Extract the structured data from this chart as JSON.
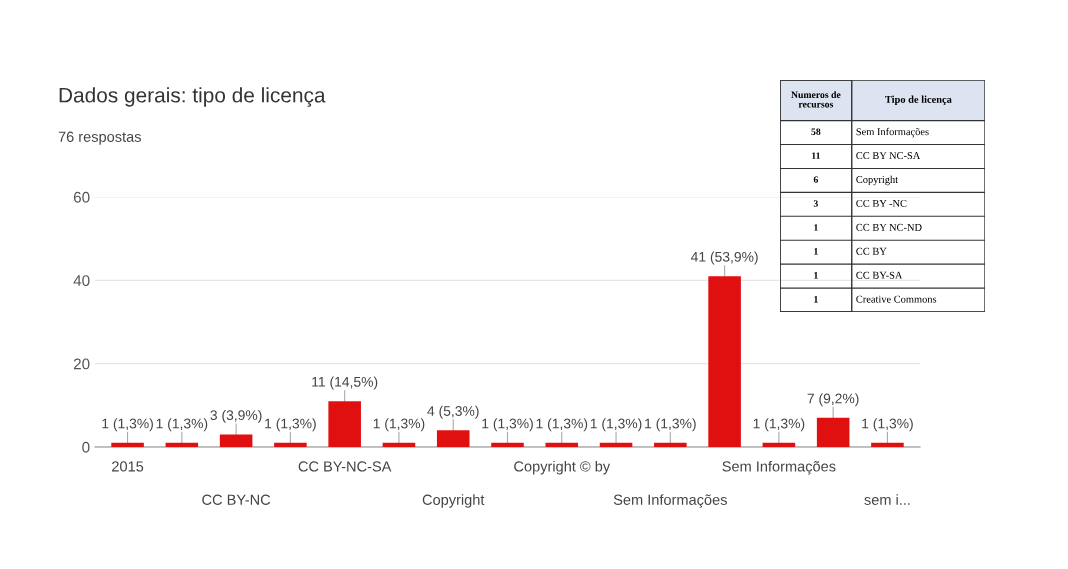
{
  "chart_data": [
    {
      "type": "bar",
      "title": "Dados gerais: tipo de licença",
      "subtitle": "76 respostas",
      "categories": [
        "2015",
        null,
        "CC BY-NC",
        null,
        "CC BY-NC-SA",
        null,
        "Copyright",
        null,
        "Copyright © by",
        null,
        "Sem Informações",
        null,
        "Sem Informações",
        null,
        "sem i..."
      ],
      "values": [
        1,
        1,
        3,
        1,
        11,
        1,
        4,
        1,
        1,
        1,
        1,
        41,
        1,
        7,
        1
      ],
      "value_labels": [
        "1 (1,3%)",
        "1 (1,3%)",
        "3 (3,9%)",
        "1 (1,3%)",
        "11 (14,5%)",
        "1 (1,3%)",
        "4 (5,3%)",
        "1 (1,3%)",
        "1 (1,3%)",
        "1 (1,3%)",
        "1 (1,3%)",
        "41 (53,9%)",
        "1 (1,3%)",
        "7 (9,2%)",
        "1 (1,3%)"
      ],
      "color": "#e01010",
      "ylim": [
        0,
        60
      ],
      "yticks": [
        0,
        20,
        40,
        60
      ],
      "grid": "y"
    },
    {
      "type": "other",
      "annotations": [
        "Numeros de recursos",
        "Tipo de licença",
        "58",
        "Sem Informações",
        "11",
        "CC BY NC-SA",
        "6",
        "Copyright",
        "3",
        "CC BY -NC",
        "1",
        "CC BY NC-ND",
        "1",
        "CC BY",
        "1",
        "CC BY-SA",
        "1",
        "Creative Commons"
      ]
    }
  ]
}
